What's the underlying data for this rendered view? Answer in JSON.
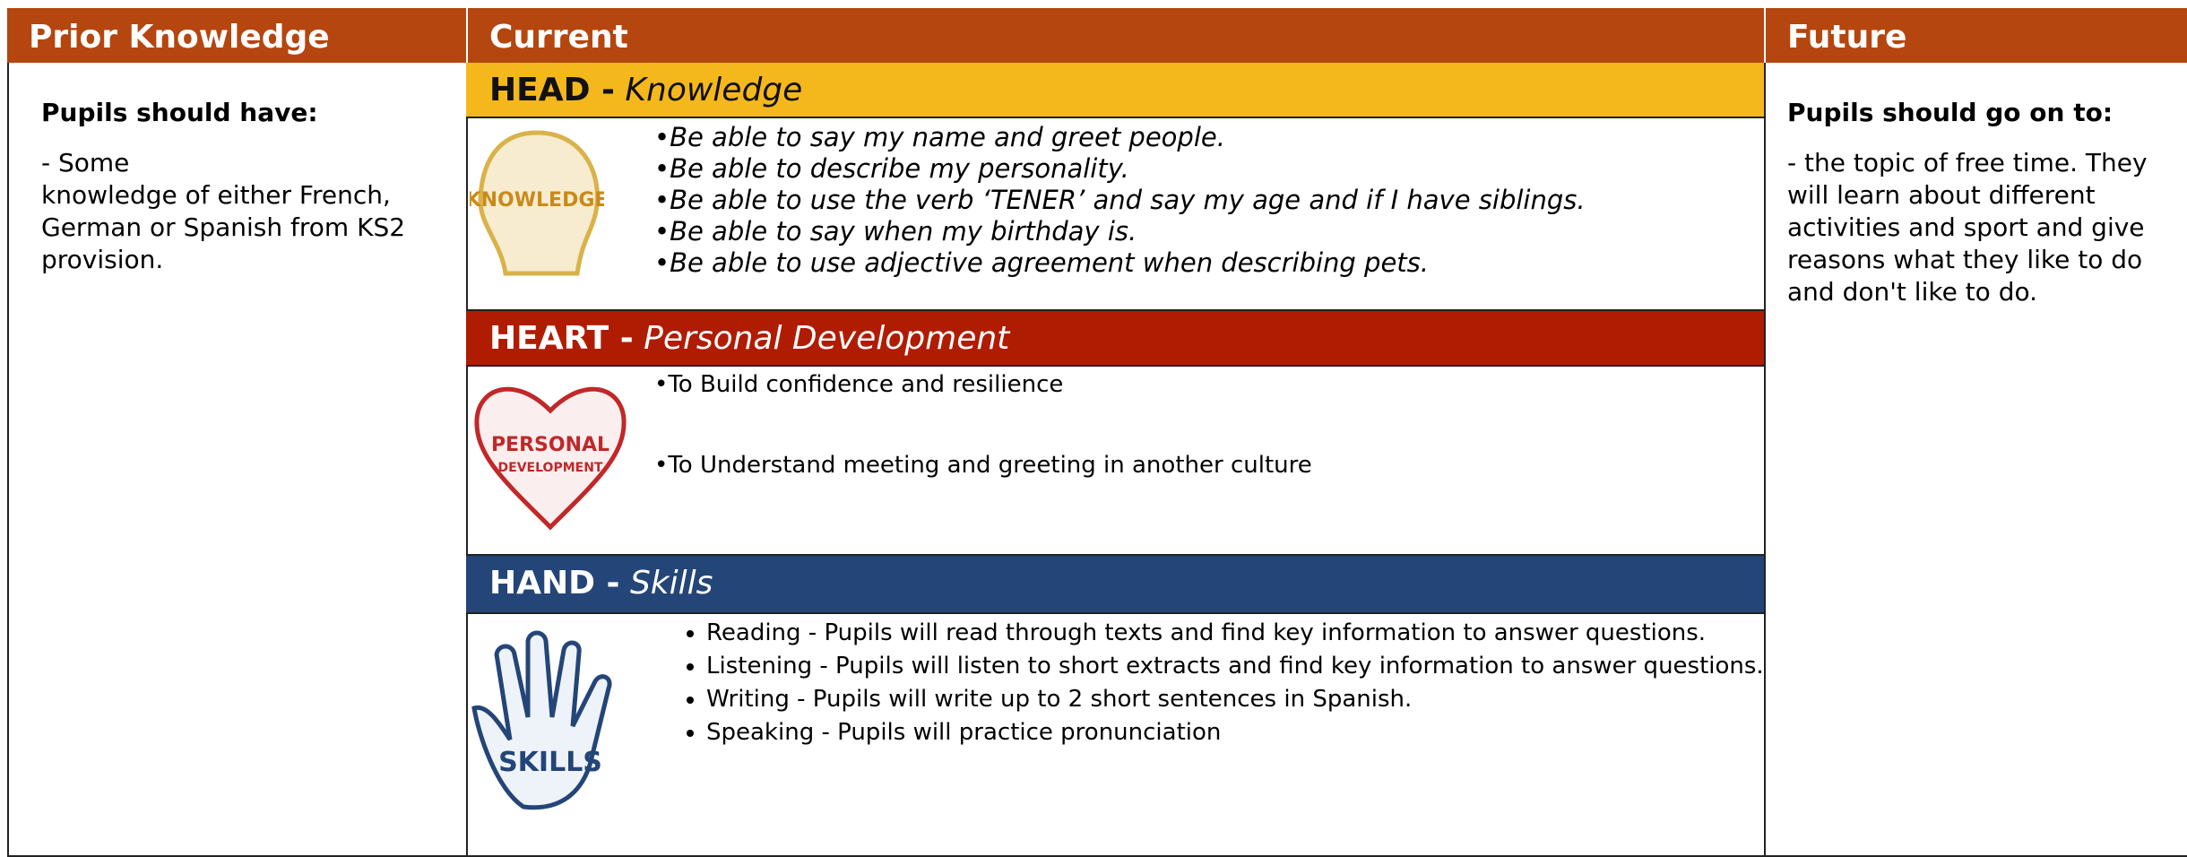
{
  "prior": {
    "header": "Prior Knowledge",
    "heading": "Pupils should have:",
    "lines": [
      "-  Some",
      "knowledge of either French, German or Spanish from KS2 provision."
    ]
  },
  "current": {
    "header": "Current",
    "head": {
      "label": "HEAD -",
      "subtitle": "Knowledge",
      "items": [
        "•Be able to say my name and greet people.",
        "•Be able to describe my personality.",
        "•Be able to use the verb ‘TENER’ and say my age and if I have siblings.",
        "•Be able to say when my birthday is.",
        "•Be able to use adjective agreement when describing pets."
      ]
    },
    "heart": {
      "label": "HEART -",
      "subtitle": "Personal Development",
      "items": [
        "•To Build confidence and resilience",
        "•To Understand meeting and greeting in another culture"
      ]
    },
    "hand": {
      "label": "HAND -",
      "subtitle": "Skills",
      "items": [
        "Reading - Pupils will read through texts and find key information to answer questions.",
        "Listening - Pupils will listen to short extracts and find key information to answer questions.",
        "Writing - Pupils will write up to 2 short sentences in Spanish.",
        "Speaking - Pupils will practice pronunciation"
      ]
    }
  },
  "future": {
    "header": "Future",
    "heading": "Pupils should go on to:",
    "text": "- the topic of free time. They will learn about different activities and sport and give reasons what they like to do and don't like to do."
  }
}
